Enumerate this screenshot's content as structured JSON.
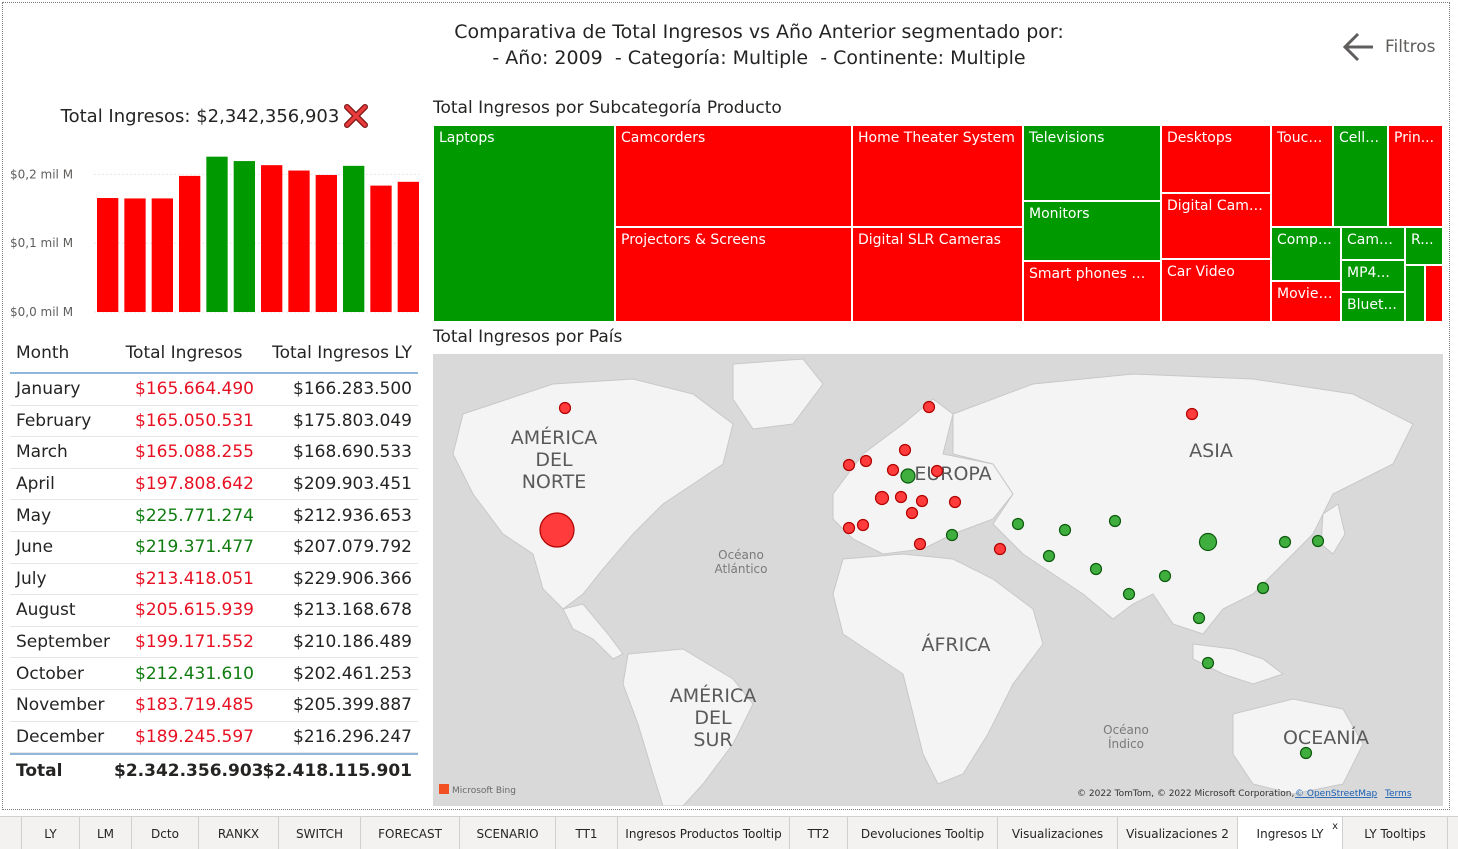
{
  "header": {
    "title_line1": "Comparativa de Total Ingresos vs Año Anterior segmentado por:",
    "title_line2": "- Año: 2009  - Categoría: Multiple  - Continente: Multiple",
    "filters_label": "Filtros"
  },
  "kpi": {
    "label": "Total Ingresos: $2,342,356,903",
    "status_icon": "red-x-icon"
  },
  "colors": {
    "negative": "#ff0000",
    "positive": "#009900",
    "text_negative": "#e81123",
    "text_positive": "#107c10"
  },
  "chart_data": {
    "type": "bar",
    "categories": [
      "January",
      "February",
      "March",
      "April",
      "May",
      "June",
      "July",
      "August",
      "September",
      "October",
      "November",
      "December"
    ],
    "values": [
      165.66,
      165.05,
      165.09,
      197.81,
      225.77,
      219.37,
      213.42,
      205.62,
      199.17,
      212.43,
      183.72,
      189.25
    ],
    "unit": "millions",
    "colors": [
      "red",
      "red",
      "red",
      "red",
      "green",
      "green",
      "red",
      "red",
      "red",
      "green",
      "red",
      "red"
    ],
    "ytick_labels": [
      "$0,0 mil M",
      "$0,1 mil M",
      "$0,2 mil M"
    ],
    "yticks": [
      0,
      100,
      200
    ],
    "ylim": [
      0,
      250
    ]
  },
  "table": {
    "headers": [
      "Month",
      "Total Ingresos",
      "Total Ingresos LY"
    ],
    "rows": [
      {
        "month": "January",
        "ti": "$165.664.490",
        "ly": "$166.283.500",
        "status": "red"
      },
      {
        "month": "February",
        "ti": "$165.050.531",
        "ly": "$175.803.049",
        "status": "red"
      },
      {
        "month": "March",
        "ti": "$165.088.255",
        "ly": "$168.690.533",
        "status": "red"
      },
      {
        "month": "April",
        "ti": "$197.808.642",
        "ly": "$209.903.451",
        "status": "red"
      },
      {
        "month": "May",
        "ti": "$225.771.274",
        "ly": "$212.936.653",
        "status": "green"
      },
      {
        "month": "June",
        "ti": "$219.371.477",
        "ly": "$207.079.792",
        "status": "green"
      },
      {
        "month": "July",
        "ti": "$213.418.051",
        "ly": "$229.906.366",
        "status": "red"
      },
      {
        "month": "August",
        "ti": "$205.615.939",
        "ly": "$213.168.678",
        "status": "red"
      },
      {
        "month": "September",
        "ti": "$199.171.552",
        "ly": "$210.186.489",
        "status": "red"
      },
      {
        "month": "October",
        "ti": "$212.431.610",
        "ly": "$202.461.253",
        "status": "green"
      },
      {
        "month": "November",
        "ti": "$183.719.485",
        "ly": "$205.399.887",
        "status": "red"
      },
      {
        "month": "December",
        "ti": "$189.245.597",
        "ly": "$216.296.247",
        "status": "red"
      }
    ],
    "total_label": "Total",
    "total_ti": "$2.342.356.903",
    "total_ly": "$2.418.115.901"
  },
  "treemap": {
    "title": "Total Ingresos por Subcategoría Producto",
    "tiles": [
      {
        "label": "Laptops",
        "status": "green"
      },
      {
        "label": "Camcorders",
        "status": "red"
      },
      {
        "label": "Projectors & Screens",
        "status": "red"
      },
      {
        "label": "Home Theater System",
        "status": "red"
      },
      {
        "label": "Digital SLR Cameras",
        "status": "red"
      },
      {
        "label": "Televisions",
        "status": "green"
      },
      {
        "label": "Monitors",
        "status": "green"
      },
      {
        "label": "Smart phones & ...",
        "status": "red"
      },
      {
        "label": "Desktops",
        "status": "red"
      },
      {
        "label": "Digital Came...",
        "status": "red"
      },
      {
        "label": "Car Video",
        "status": "red"
      },
      {
        "label": "Touch...",
        "status": "red"
      },
      {
        "label": "Cell ...",
        "status": "green"
      },
      {
        "label": "Prin...",
        "status": "red"
      },
      {
        "label": "Compu...",
        "status": "green"
      },
      {
        "label": "Came...",
        "status": "green"
      },
      {
        "label": "R...",
        "status": "green"
      },
      {
        "label": "MP4...",
        "status": "green"
      },
      {
        "label": "Movie ...",
        "status": "red"
      },
      {
        "label": "Bluet...",
        "status": "green"
      },
      {
        "label": "",
        "status": "green"
      },
      {
        "label": "",
        "status": "red"
      }
    ]
  },
  "map": {
    "title": "Total Ingresos por País",
    "labels": {
      "north_america": [
        "AMÉRICA",
        "DEL",
        "NORTE"
      ],
      "south_america": [
        "AMÉRICA",
        "DEL",
        "SUR"
      ],
      "europe": "EUROPA",
      "asia": "ASIA",
      "africa": "ÁFRICA",
      "oceania": "OCEANÍA",
      "atlantic": [
        "Océano",
        "Atlántico"
      ],
      "indian": [
        "Océano",
        "Índico"
      ]
    },
    "bing_logo": "Microsoft Bing",
    "copyright": "© 2022 TomTom, © 2022 Microsoft Corporation,",
    "osm_link": "© OpenStreetMap",
    "terms_link": "Terms"
  },
  "tabs": {
    "items": [
      "LY",
      "LM",
      "Dcto",
      "RANKX",
      "SWITCH",
      "FORECAST",
      "SCENARIO",
      "TT1",
      "Ingresos Productos Tooltip",
      "TT2",
      "Devoluciones Tooltip",
      "Visualizaciones",
      "Visualizaciones 2",
      "Ingresos LY",
      "LY Tooltips"
    ],
    "active": "Ingresos LY",
    "close_glyph": "x"
  }
}
